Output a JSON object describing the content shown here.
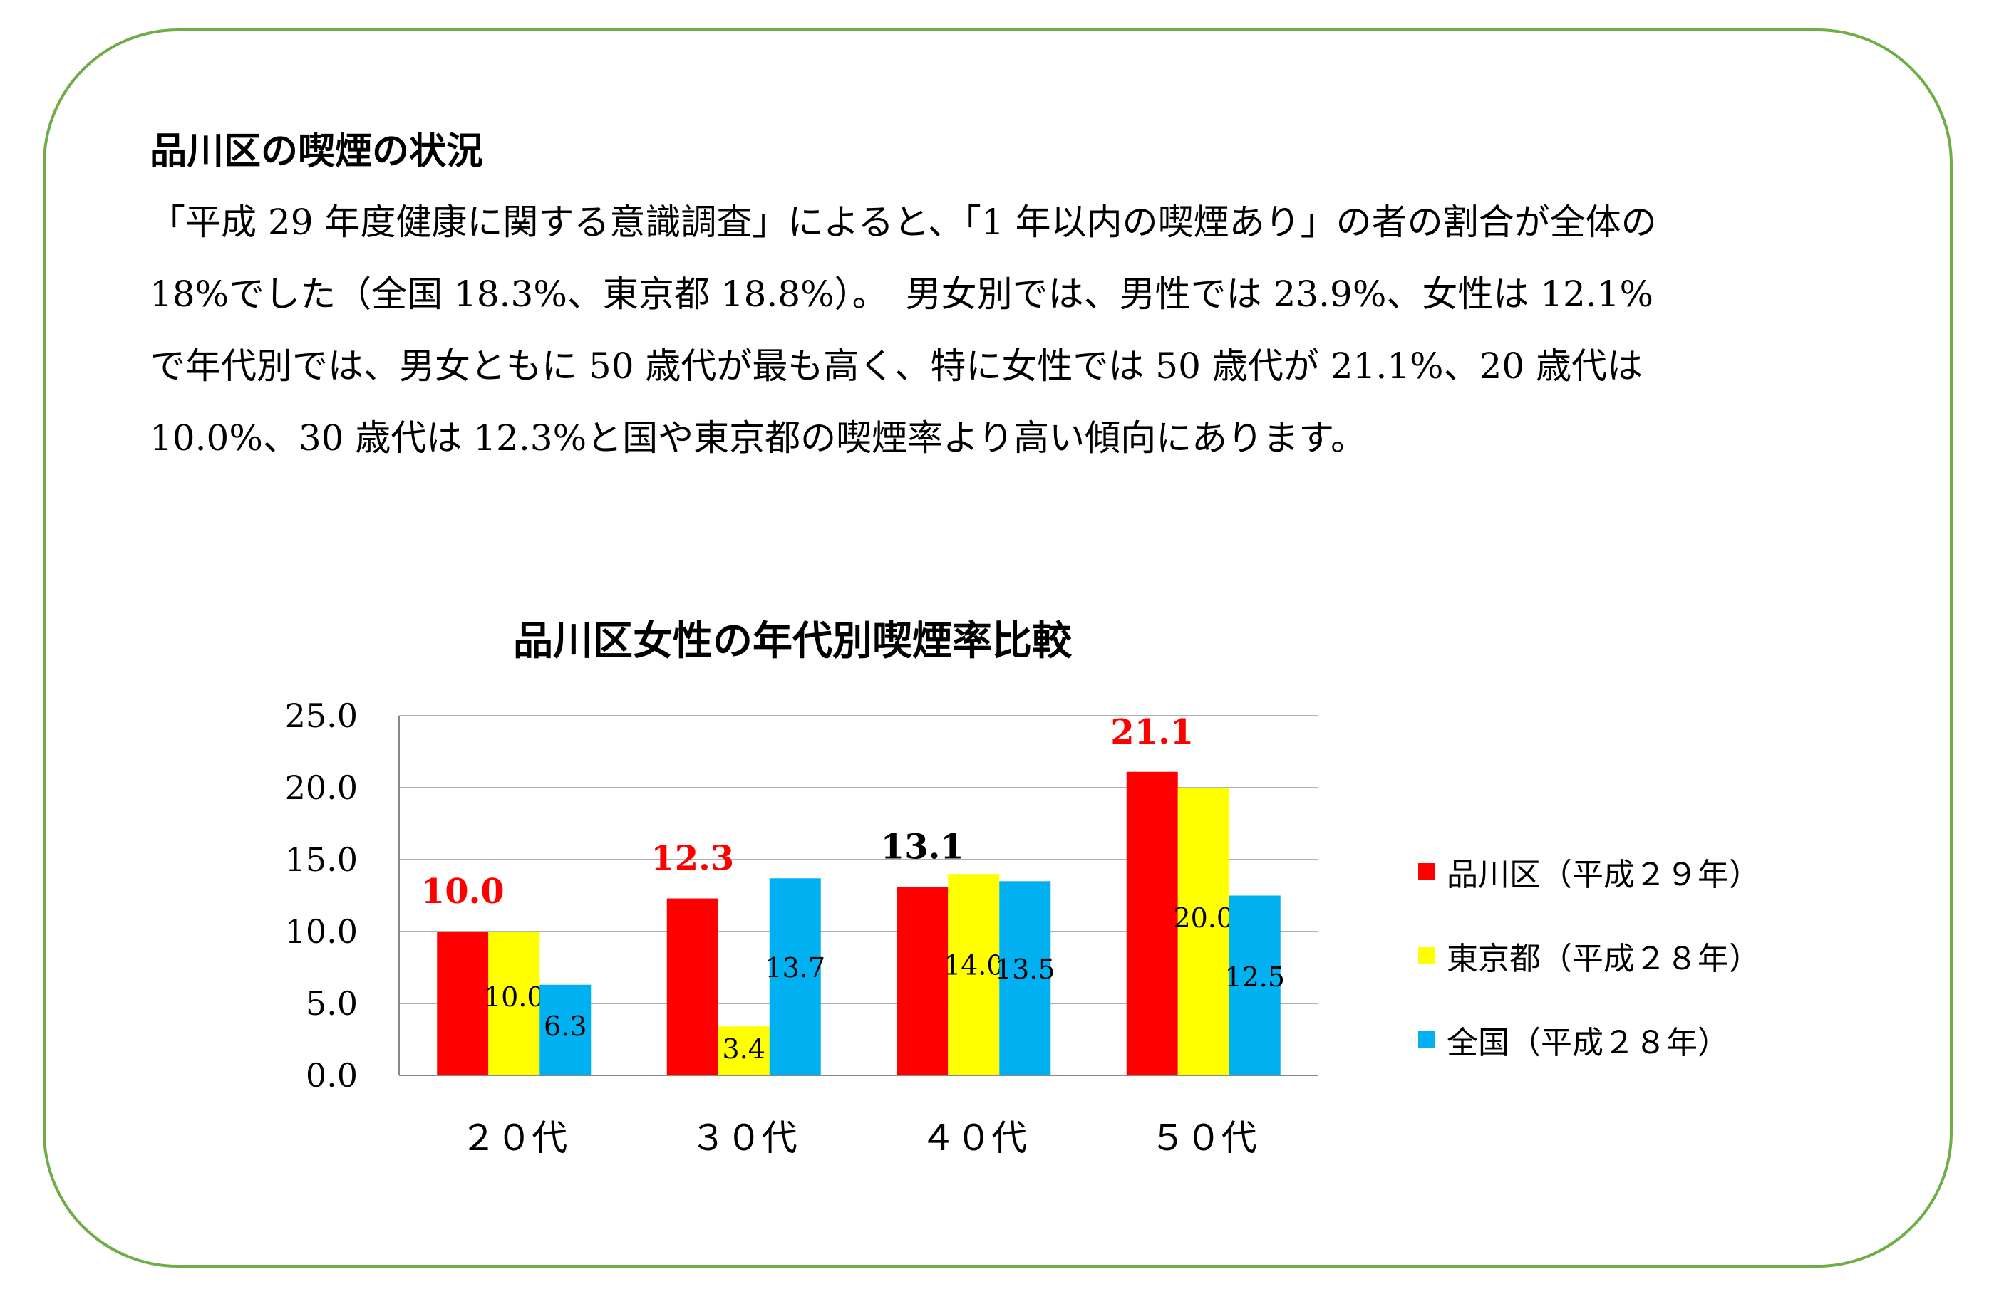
{
  "heading": "品川区の喫煙の状況",
  "paragraph_lines": [
    "「平成 29 年度健康に関する意識調査」によると、「1 年以内の喫煙あり」の者の割合が全体の",
    "18%でした（全国 18.3%、東京都 18.8%）。　男女別では、男性では 23.9%、女性は 12.1%",
    "で年代別では、男女ともに 50 歳代が最も高く、特に女性では 50 歳代が 21.1%、20 歳代は",
    "10.0%、30 歳代は 12.3%と国や東京都の喫煙率より高い傾向にあります。"
  ],
  "chart_data": {
    "type": "bar",
    "title": "品川区女性の年代別喫煙率比較",
    "categories": [
      "２０代",
      "３０代",
      "４０代",
      "５０代"
    ],
    "ylim": [
      0,
      25
    ],
    "y_ticks": [
      "0.0",
      "5.0",
      "10.0",
      "15.0",
      "20.0",
      "25.0"
    ],
    "grid": true,
    "legend_position": "right",
    "series": [
      {
        "name": "品川区（平成２９年）",
        "color": "#ff0000",
        "values": [
          10.0,
          12.3,
          13.1,
          21.1
        ],
        "labels": [
          "10.0",
          "12.3",
          "13.1",
          "21.1"
        ],
        "label_colors": [
          "#ff0000",
          "#ff0000",
          "#000000",
          "#ff0000"
        ]
      },
      {
        "name": "東京都（平成２８年）",
        "color": "#ffff00",
        "values": [
          10.0,
          3.4,
          14.0,
          20.0
        ],
        "labels": [
          "10.0",
          "3.4",
          "14.0",
          "20.0"
        ]
      },
      {
        "name": "全国（平成２８年）",
        "color": "#00b0f0",
        "values": [
          6.3,
          13.7,
          13.5,
          12.5
        ],
        "labels": [
          "6.3",
          "13.7",
          "13.5",
          "12.5"
        ]
      }
    ]
  }
}
